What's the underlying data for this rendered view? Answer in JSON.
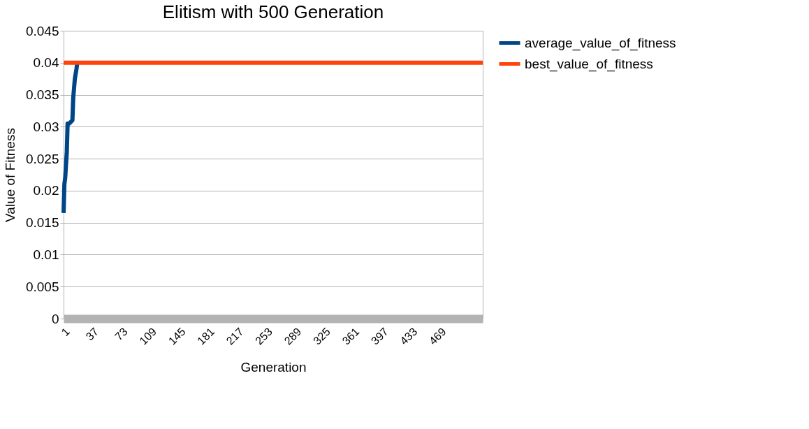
{
  "chart_data": {
    "type": "line",
    "title": "Elitism with 500 Generation",
    "xlabel": "Generation",
    "ylabel": "Value of Fitness",
    "xlim": [
      1,
      522
    ],
    "xticks": [
      1,
      37,
      73,
      109,
      145,
      181,
      217,
      253,
      289,
      325,
      361,
      397,
      433,
      469
    ],
    "ylim": [
      0,
      0.045
    ],
    "yticks": [
      0,
      0.005,
      0.01,
      0.015,
      0.02,
      0.025,
      0.03,
      0.035,
      0.04,
      0.045
    ],
    "grid": "y",
    "legend": "right",
    "marker": "none",
    "line_style": "solid",
    "series": [
      {
        "name": "average_value_of_fitness",
        "color": "#004586",
        "x": [
          1,
          2,
          3,
          5,
          6,
          8,
          12,
          13,
          15,
          17,
          18
        ],
        "values": [
          0.0165,
          0.021,
          0.022,
          0.026,
          0.0305,
          0.0305,
          0.031,
          0.0345,
          0.0375,
          0.039,
          0.04
        ]
      },
      {
        "name": "best_value_of_fitness",
        "color": "#ff420e",
        "x": [
          1,
          522
        ],
        "values": [
          0.04,
          0.04
        ]
      }
    ]
  }
}
